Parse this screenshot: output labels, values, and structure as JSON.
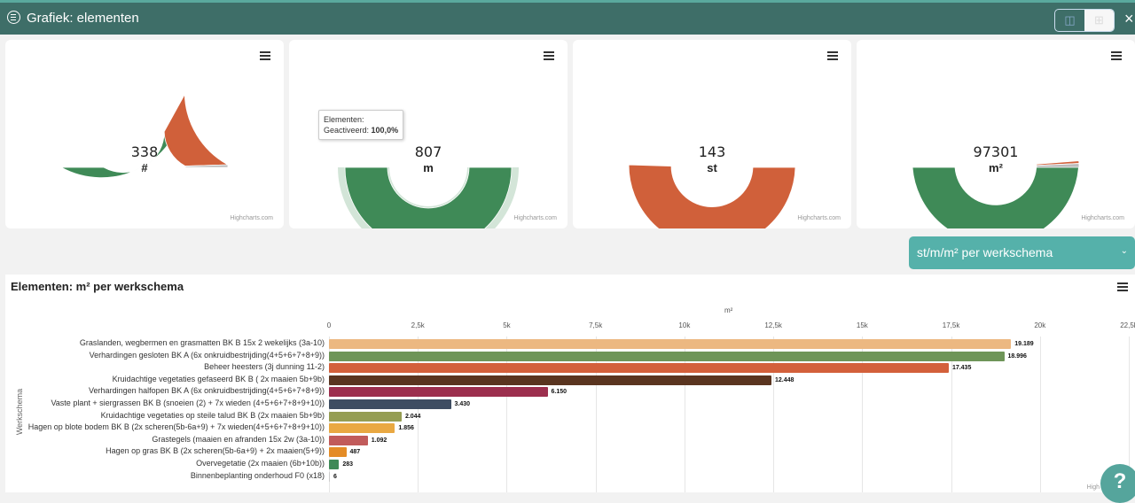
{
  "header": {
    "title": "Grafiek: elementen",
    "close_icon": "×"
  },
  "gauges": [
    {
      "value": "338",
      "unit": "#",
      "segments": [
        {
          "fraction": 0.66,
          "color": "#3f8a57"
        },
        {
          "fraction": 0.33,
          "color": "#d0603a"
        },
        {
          "fraction": 0.01,
          "color": "#bbbbbb"
        }
      ],
      "credit": "Highcharts.com"
    },
    {
      "value": "807",
      "unit": "m",
      "segments": [
        {
          "fraction": 1.0,
          "color": "#3f8a57"
        }
      ],
      "hover": true,
      "credit": "Highcharts.com"
    },
    {
      "value": "143",
      "unit": "st",
      "segments": [
        {
          "fraction": 0.01,
          "color": "#3f8a57"
        },
        {
          "fraction": 0.99,
          "color": "#d0603a"
        }
      ],
      "credit": "Highcharts.com"
    },
    {
      "value": "97301",
      "unit": "m²",
      "segments": [
        {
          "fraction": 0.975,
          "color": "#3f8a57"
        },
        {
          "fraction": 0.01,
          "color": "#d0603a"
        },
        {
          "fraction": 0.015,
          "color": "#bbbbbb"
        }
      ],
      "credit": "Highcharts.com"
    }
  ],
  "tooltip": {
    "line1": "Elementen:",
    "label": "Geactiveerd:",
    "value": "100,0%"
  },
  "select": {
    "value": "st/m/m² per werkschema"
  },
  "chart_data": {
    "type": "bar",
    "title": "Elementen: m² per werkschema",
    "xlabel": "m²",
    "ylabel": "Werkschema",
    "xlim": [
      0,
      22500
    ],
    "ticks": [
      "0",
      "2,5k",
      "5k",
      "7,5k",
      "10k",
      "12,5k",
      "15k",
      "17,5k",
      "20k",
      "22,5k"
    ],
    "categories": [
      "Graslanden, wegbermen en grasmatten BK B 15x 2 wekelijks (3a-10)",
      "Verhardingen gesloten BK A (6x onkruidbestrijding(4+5+6+7+8+9))",
      "Beheer heesters (3j dunning 11-2)",
      "Kruidachtige vegetaties gefaseerd BK B ( 2x maaien 5b+9b)",
      "Verhardingen halfopen BK A (6x onkruidbestrijding(4+5+6+7+8+9))",
      "Vaste plant + siergrassen BK B (snoeien (2) + 7x wieden (4+5+6+7+8+9+10))",
      "Kruidachtige vegetaties op steile talud BK B (2x maaien 5b+9b)",
      "Hagen op blote bodem BK B (2x scheren(5b-6a+9) + 7x wieden(4+5+6+7+8+9+10))",
      "Grastegels (maaien en afranden 15x 2w (3a-10))",
      "Hagen op gras BK B (2x scheren(5b-6a+9) + 2x maaien(5+9))",
      "Overvegetatie (2x maaien (6b+10b))",
      "Binnenbeplanting onderhoud F0 (x18)"
    ],
    "values": [
      19189,
      18996,
      17435,
      12448,
      6150,
      3430,
      2044,
      1856,
      1092,
      487,
      283,
      6
    ],
    "labels": [
      "19.189",
      "18.996",
      "17.435",
      "12.448",
      "6.150",
      "3.430",
      "2.044",
      "1.856",
      "1.092",
      "487",
      "283",
      "6"
    ],
    "colors": [
      "#ecb881",
      "#6e9558",
      "#d3603b",
      "#5a3520",
      "#9c2f4e",
      "#3e4d62",
      "#959d53",
      "#e9a842",
      "#c15b5b",
      "#e48c27",
      "#3f8a57",
      "#cccccc"
    ],
    "credit": "High"
  },
  "help": {
    "label": "?"
  }
}
